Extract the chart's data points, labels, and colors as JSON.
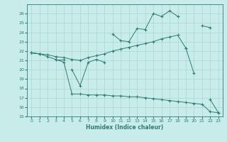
{
  "xlabel": "Humidex (Indice chaleur)",
  "x": [
    0,
    1,
    2,
    3,
    4,
    5,
    6,
    7,
    8,
    9,
    10,
    11,
    12,
    13,
    14,
    15,
    16,
    17,
    18,
    19,
    20,
    21,
    22,
    23
  ],
  "line_peak": [
    null,
    null,
    null,
    null,
    null,
    null,
    null,
    null,
    null,
    null,
    23.8,
    23.1,
    23.0,
    24.4,
    24.3,
    26.0,
    25.7,
    26.3,
    25.7,
    null,
    null,
    24.7,
    24.5,
    null
  ],
  "line_mid": [
    21.8,
    21.7,
    21.6,
    21.4,
    21.3,
    21.1,
    21.0,
    21.3,
    21.5,
    21.7,
    22.0,
    22.2,
    22.4,
    22.6,
    22.8,
    23.0,
    23.3,
    23.5,
    23.7,
    22.3,
    null,
    null,
    null,
    null
  ],
  "line_low": [
    null,
    null,
    null,
    null,
    null,
    null,
    null,
    null,
    null,
    null,
    null,
    null,
    null,
    null,
    null,
    null,
    null,
    null,
    null,
    22.3,
    19.6,
    null,
    16.8,
    15.4
  ],
  "line_bot": [
    21.8,
    21.7,
    21.4,
    21.1,
    20.8,
    17.4,
    17.4,
    17.3,
    17.3,
    17.3,
    17.2,
    17.2,
    17.1,
    17.1,
    17.0,
    16.9,
    16.8,
    16.7,
    16.6,
    16.5,
    16.4,
    16.3,
    15.5,
    15.4
  ],
  "line_jagged": [
    null,
    null,
    null,
    null,
    null,
    20.0,
    18.3,
    20.8,
    21.1,
    20.8,
    null,
    null,
    null,
    null,
    null,
    null,
    null,
    null,
    null,
    null,
    null,
    null,
    null,
    null
  ],
  "line_flat": [
    21.8,
    21.7,
    null,
    21.1,
    21.1,
    null,
    null,
    null,
    null,
    null,
    null,
    null,
    null,
    null,
    null,
    null,
    null,
    null,
    null,
    null,
    null,
    null,
    null,
    null
  ],
  "color": "#2e7d6e",
  "bg_color": "#c8ece9",
  "grid_color": "#aad6d1",
  "ylim": [
    15,
    27
  ],
  "xlim": [
    -0.5,
    23.5
  ],
  "yticks": [
    15,
    16,
    17,
    18,
    19,
    20,
    21,
    22,
    23,
    24,
    25,
    26
  ],
  "xticks": [
    0,
    1,
    2,
    3,
    4,
    5,
    6,
    7,
    8,
    9,
    10,
    11,
    12,
    13,
    14,
    15,
    16,
    17,
    18,
    19,
    20,
    21,
    22,
    23
  ]
}
